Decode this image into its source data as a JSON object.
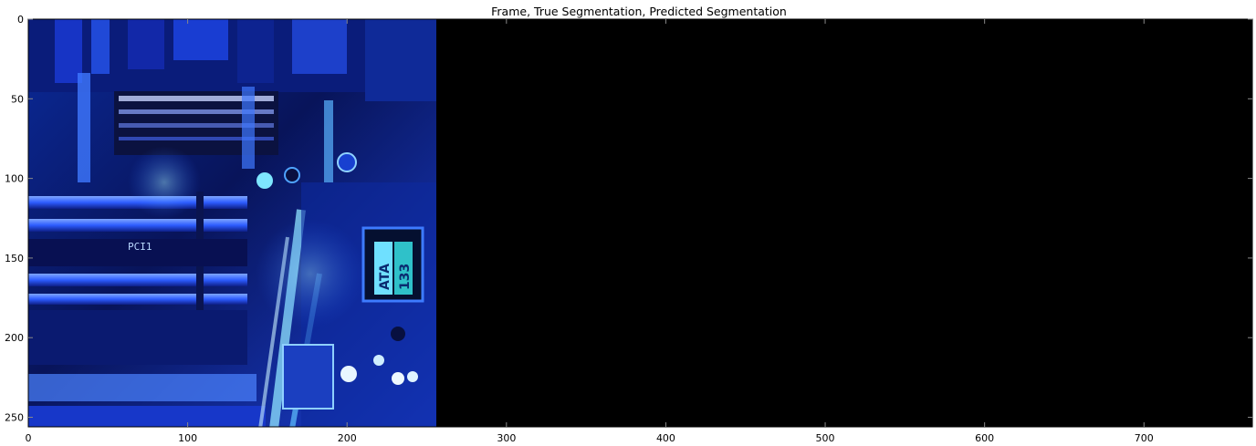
{
  "chart_data": {
    "type": "image",
    "title": "Frame, True Segmentation, Predicted Segmentation",
    "panels": [
      {
        "name": "Frame",
        "x_range": [
          0,
          256
        ],
        "content": "circuit-board-photo",
        "dominant_colors": [
          "#0a1a6e",
          "#1f4fff",
          "#6fd6ff",
          "#03062a"
        ]
      },
      {
        "name": "True Segmentation",
        "x_range": [
          256,
          512
        ],
        "fill": "#000000"
      },
      {
        "name": "Predicted Segmentation",
        "x_range": [
          512,
          768
        ],
        "fill": "#000000"
      }
    ],
    "xlim": [
      0,
      768
    ],
    "ylim": [
      256,
      0
    ],
    "xticks": [
      0,
      100,
      200,
      300,
      400,
      500,
      600,
      700
    ],
    "yticks": [
      0,
      50,
      100,
      150,
      200,
      250
    ],
    "xlabel": "",
    "ylabel": "",
    "grid": false
  },
  "text": {
    "title": "Frame, True Segmentation, Predicted Segmentation",
    "ata": "ATA",
    "ata_number": "133",
    "pci_label": "PCI1"
  }
}
